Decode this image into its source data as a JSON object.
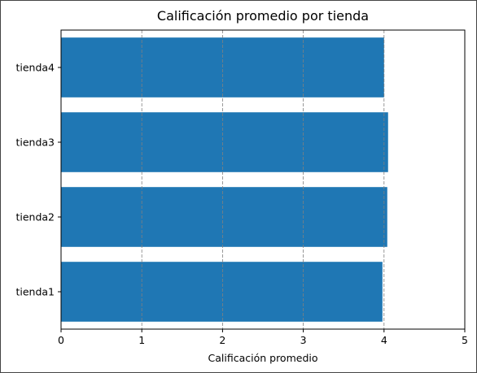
{
  "chart_data": {
    "type": "bar",
    "orientation": "horizontal",
    "title": "Calificación promedio por tienda",
    "xlabel": "Calificación promedio",
    "ylabel": "",
    "categories": [
      "tienda1",
      "tienda2",
      "tienda3",
      "tienda4"
    ],
    "values": [
      3.98,
      4.04,
      4.05,
      4.0
    ],
    "xlim": [
      0,
      5
    ],
    "xticks": [
      "0",
      "1",
      "2",
      "3",
      "4",
      "5"
    ],
    "grid": "x-dashed",
    "bar_color": "#1f77b4",
    "legend": "none"
  }
}
